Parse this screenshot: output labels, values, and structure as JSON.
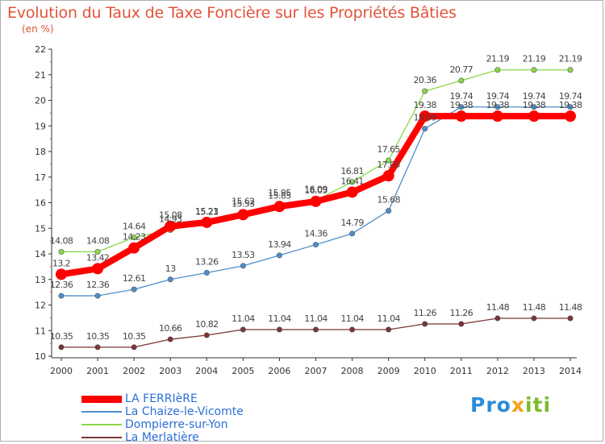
{
  "title": "Evolution du Taux de Taxe Foncière sur les Propriétés Bâties",
  "subtitle": "(en %)",
  "logo": {
    "part1": "Pro",
    "part2": "x",
    "part3": "iti"
  },
  "chart_data": {
    "type": "line",
    "x": [
      2000,
      2001,
      2002,
      2003,
      2004,
      2005,
      2006,
      2007,
      2008,
      2009,
      2010,
      2011,
      2012,
      2013,
      2014
    ],
    "ylim": [
      10,
      22
    ],
    "yticks": [
      10,
      11,
      12,
      13,
      14,
      15,
      16,
      17,
      18,
      19,
      20,
      21,
      22
    ],
    "grid": false,
    "legend": "bottom-left",
    "series": [
      {
        "name": "LA FERRIèRE",
        "color": "#ff0000",
        "values": [
          13.2,
          13.42,
          14.23,
          15.08,
          15.23,
          15.53,
          15.85,
          16.05,
          16.41,
          17.05,
          19.38,
          19.38,
          19.38,
          19.38,
          19.38
        ],
        "labels": [
          "13.2",
          "13.42",
          "14.23",
          "15.08",
          "15.23",
          "15.53",
          "15.85",
          "16.05",
          "16.41",
          "17.05",
          "19.38",
          "19.38",
          "19.38",
          "19.38",
          "19.38"
        ]
      },
      {
        "name": "La Chaize-le-Vicomte",
        "color": "#4d8fcc",
        "values": [
          12.36,
          12.36,
          12.61,
          13,
          13.26,
          13.53,
          13.94,
          14.36,
          14.79,
          15.68,
          18.89,
          19.74,
          19.74,
          19.74,
          19.74
        ],
        "labels": [
          "12.36",
          "12.36",
          "12.61",
          "13",
          "13.26",
          "13.53",
          "13.94",
          "14.36",
          "14.79",
          "15.68",
          "18.89",
          "19.74",
          "19.74",
          "19.74",
          "19.74"
        ]
      },
      {
        "name": "Dompierre-sur-Yon",
        "color": "#8cd64a",
        "values": [
          14.08,
          14.08,
          14.64,
          14.93,
          15.21,
          15.62,
          15.95,
          16.09,
          16.81,
          17.65,
          20.36,
          20.77,
          21.19,
          21.19,
          21.19
        ],
        "labels": [
          "14.08",
          "14.08",
          "14.64",
          "14.93",
          "15.21",
          "15.62",
          "15.95",
          "16.09",
          "16.81",
          "17.65",
          "20.36",
          "20.77",
          "21.19",
          "21.19",
          "21.19"
        ]
      },
      {
        "name": "La Merlatière",
        "color": "#7b3535",
        "values": [
          10.35,
          10.35,
          10.35,
          10.66,
          10.82,
          11.04,
          11.04,
          11.04,
          11.04,
          11.04,
          11.26,
          11.26,
          11.48,
          11.48,
          11.48
        ],
        "labels": [
          "10.35",
          "10.35",
          "10.35",
          "10.66",
          "10.82",
          "11.04",
          "11.04",
          "11.04",
          "11.04",
          "11.04",
          "11.26",
          "11.26",
          "11.48",
          "11.48",
          "11.48"
        ]
      }
    ]
  }
}
